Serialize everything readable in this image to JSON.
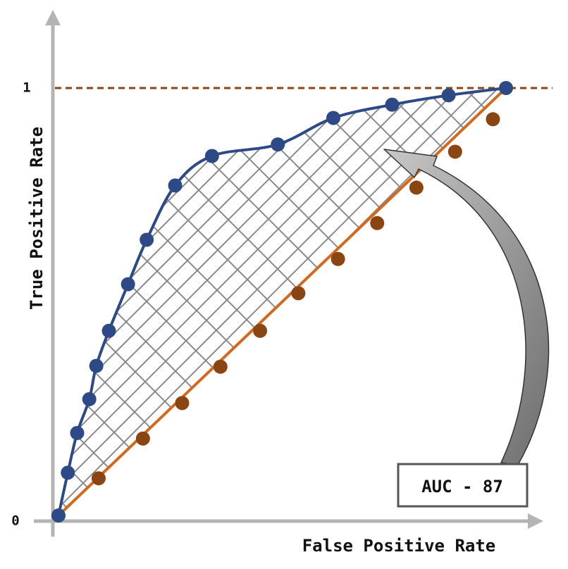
{
  "chart_data": {
    "type": "line",
    "xlabel": "False Positive Rate",
    "ylabel": "True Positive Rate",
    "xlim": [
      0,
      1.1
    ],
    "ylim": [
      0,
      1
    ],
    "y_ticks": [
      {
        "value": 0,
        "label": "0"
      },
      {
        "value": 1,
        "label": "1"
      }
    ],
    "grid": false,
    "legend": "none",
    "series": [
      {
        "role": "roc-curve",
        "color": "#2E4A86",
        "x": [
          0,
          0.02,
          0.04,
          0.066,
          0.081,
          0.108,
          0.149,
          0.189,
          0.25,
          0.329,
          0.47,
          0.589,
          0.715,
          0.836,
          0.959
        ],
        "y": [
          0,
          0.1,
          0.193,
          0.272,
          0.35,
          0.432,
          0.541,
          0.645,
          0.772,
          0.841,
          0.868,
          0.93,
          0.961,
          0.983,
          1.0
        ]
      },
      {
        "role": "diagonal",
        "color": "#D2691E",
        "points_color": "#8B4513",
        "x": [
          0,
          0.086,
          0.181,
          0.265,
          0.347,
          0.432,
          0.514,
          0.599,
          0.683,
          0.767,
          0.85,
          0.931,
          1.0
        ],
        "y": [
          0,
          0.087,
          0.18,
          0.263,
          0.348,
          0.432,
          0.52,
          0.6,
          0.684,
          0.767,
          0.851,
          0.927,
          1.0
        ]
      }
    ],
    "reference_line": {
      "y": 1,
      "style": "dashed",
      "color": "#8B4513"
    },
    "annotation": {
      "text": "AUC - 87"
    }
  },
  "colors": {
    "axis": "#B4B4B4",
    "hatch": "#8A8A8A",
    "arrow_fill": "#8E8E8E",
    "arrow_stroke": "#333333",
    "box_border": "#555555"
  }
}
